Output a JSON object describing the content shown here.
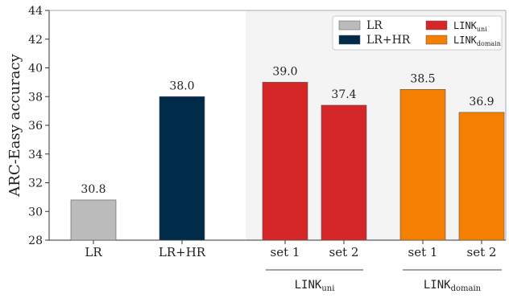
{
  "chart_data": {
    "type": "bar",
    "ylabel": "ARC-Easy accuracy",
    "ylim": [
      28,
      44
    ],
    "yticks": [
      28,
      30,
      32,
      34,
      36,
      38,
      40,
      42,
      44
    ],
    "grid": false,
    "shaded_region": "LINK groups",
    "bars": [
      {
        "label": "LR",
        "value": 30.8,
        "value_label": "30.8",
        "series": "LR",
        "color": "#bbbbbb"
      },
      {
        "label": "LR+HR",
        "value": 38.0,
        "value_label": "38.0",
        "series": "LR+HR",
        "color": "#002b49"
      },
      {
        "label": "set 1",
        "value": 39.0,
        "value_label": "39.0",
        "series": "LINK_uni",
        "color": "#d62728"
      },
      {
        "label": "set 2",
        "value": 37.4,
        "value_label": "37.4",
        "series": "LINK_uni",
        "color": "#d62728"
      },
      {
        "label": "set 1",
        "value": 38.5,
        "value_label": "38.5",
        "series": "LINK_domain",
        "color": "#f57f00"
      },
      {
        "label": "set 2",
        "value": 36.9,
        "value_label": "36.9",
        "series": "LINK_domain",
        "color": "#f57f00"
      }
    ],
    "groups": [
      {
        "base": "LINK",
        "sub": "uni"
      },
      {
        "base": "LINK",
        "sub": "domain"
      }
    ],
    "legend": {
      "placement": "top-right",
      "entries": [
        {
          "name": "LR",
          "sub": "",
          "mono": false,
          "color": "#bbbbbb"
        },
        {
          "name": "LINK",
          "sub": "uni",
          "mono": true,
          "color": "#d62728"
        },
        {
          "name": "LR+HR",
          "sub": "",
          "mono": false,
          "color": "#002b49"
        },
        {
          "name": "LINK",
          "sub": "domain",
          "mono": true,
          "color": "#f57f00"
        }
      ]
    }
  }
}
